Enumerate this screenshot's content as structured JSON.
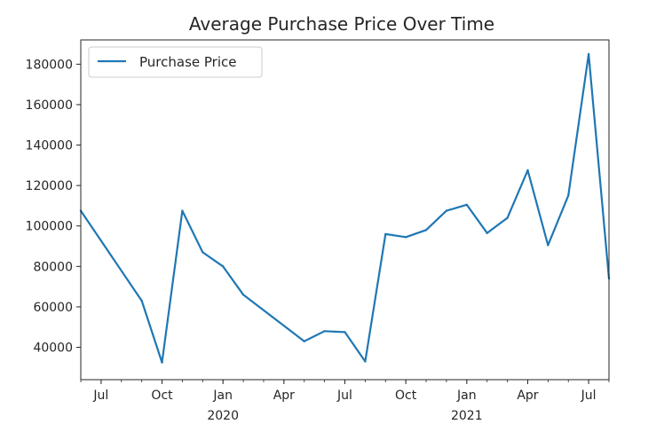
{
  "chart_data": {
    "type": "line",
    "title": "Average Purchase Price Over Time",
    "xlabel": "",
    "ylabel": "",
    "x": [
      "2019-06",
      "2019-09",
      "2019-10",
      "2019-11",
      "2019-12",
      "2020-01",
      "2020-02",
      "2020-05",
      "2020-06",
      "2020-07",
      "2020-08",
      "2020-09",
      "2020-10",
      "2020-11",
      "2020-12",
      "2021-01",
      "2021-02",
      "2021-03",
      "2021-04",
      "2021-05",
      "2021-06",
      "2021-07",
      "2021-08"
    ],
    "series": [
      {
        "name": "Purchase Price",
        "color": "#1f77b4",
        "values": [
          107500,
          63000,
          32500,
          107500,
          87000,
          80000,
          66000,
          43000,
          48000,
          47500,
          33000,
          96000,
          94500,
          98000,
          107500,
          110500,
          96500,
          104000,
          127500,
          90500,
          115000,
          185000,
          74000
        ]
      }
    ],
    "xlim": [
      "2019-06",
      "2021-08"
    ],
    "ylim": [
      24000,
      192000
    ],
    "yticks": [
      40000,
      60000,
      80000,
      100000,
      120000,
      140000,
      160000,
      180000
    ],
    "xticks": [
      {
        "date": "2019-07",
        "label": "Jul",
        "sub": ""
      },
      {
        "date": "2019-10",
        "label": "Oct",
        "sub": ""
      },
      {
        "date": "2020-01",
        "label": "Jan",
        "sub": "2020"
      },
      {
        "date": "2020-04",
        "label": "Apr",
        "sub": ""
      },
      {
        "date": "2020-07",
        "label": "Jul",
        "sub": ""
      },
      {
        "date": "2020-10",
        "label": "Oct",
        "sub": ""
      },
      {
        "date": "2021-01",
        "label": "Jan",
        "sub": "2021"
      },
      {
        "date": "2021-04",
        "label": "Apr",
        "sub": ""
      },
      {
        "date": "2021-07",
        "label": "Jul",
        "sub": ""
      }
    ],
    "grid": false,
    "legend_position": "top-left"
  }
}
